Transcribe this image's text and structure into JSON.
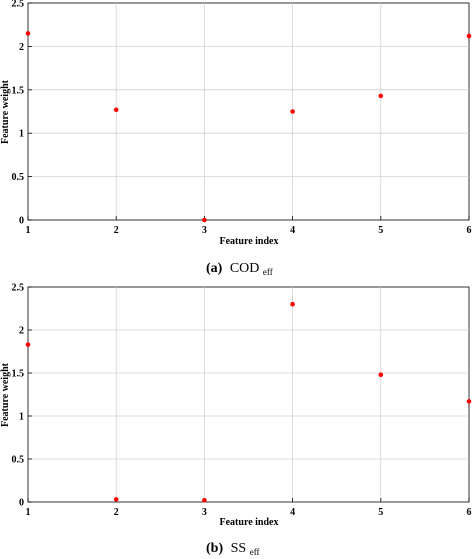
{
  "chart_data": [
    {
      "type": "scatter",
      "caption_letter": "(a)",
      "caption_main": "COD",
      "caption_sub": "eff",
      "xlabel": "Feature index",
      "ylabel": "Feature weight",
      "x": [
        1,
        2,
        3,
        4,
        5,
        6
      ],
      "y": [
        2.15,
        1.27,
        0.0,
        1.25,
        1.43,
        2.12
      ],
      "xlim": [
        1,
        6
      ],
      "ylim": [
        0,
        2.5
      ],
      "xticks": [
        "1",
        "2",
        "3",
        "4",
        "5",
        "6"
      ],
      "yticks": [
        "0",
        "0.5",
        "1",
        "1.5",
        "2",
        "2.5"
      ],
      "grid": true,
      "marker_color": "#ff0000"
    },
    {
      "type": "scatter",
      "caption_letter": "(b)",
      "caption_main": "SS",
      "caption_sub": "eff",
      "xlabel": "Feature index",
      "ylabel": "Feature weight",
      "x": [
        1,
        2,
        3,
        4,
        5,
        6
      ],
      "y": [
        1.83,
        0.03,
        0.02,
        2.3,
        1.48,
        1.17
      ],
      "xlim": [
        1,
        6
      ],
      "ylim": [
        0,
        2.5
      ],
      "xticks": [
        "1",
        "2",
        "3",
        "4",
        "5",
        "6"
      ],
      "yticks": [
        "0",
        "0.5",
        "1",
        "1.5",
        "2",
        "2.5"
      ],
      "grid": true,
      "marker_color": "#ff0000"
    }
  ]
}
